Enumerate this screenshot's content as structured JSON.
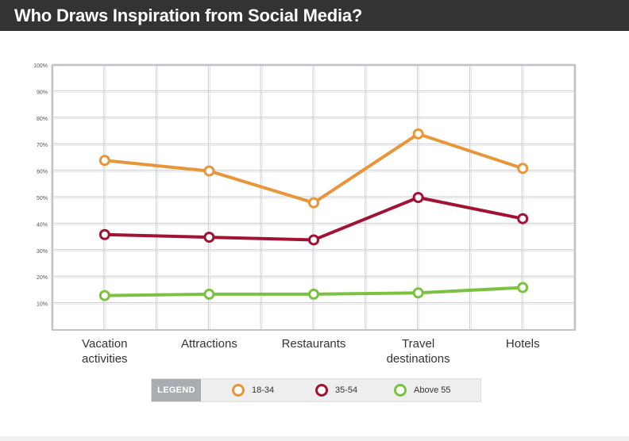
{
  "title": "Who Draws Inspiration from Social Media?",
  "legend": {
    "heading": "LEGEND",
    "items": [
      {
        "label": "18-34",
        "color": "#e8963a"
      },
      {
        "label": "35-54",
        "color": "#a21232"
      },
      {
        "label": "Above 55",
        "color": "#7cc242"
      }
    ]
  },
  "chart_data": {
    "type": "line",
    "title": "Who Draws Inspiration from Social Media?",
    "categories": [
      [
        "Vacation",
        "activities"
      ],
      [
        "Attractions"
      ],
      [
        "Restaurants"
      ],
      [
        "Travel",
        "destinations"
      ],
      [
        "Hotels"
      ]
    ],
    "y_ticks": [
      "10%",
      "20%",
      "30%",
      "40%",
      "50%",
      "60%",
      "70%",
      "80%",
      "90%",
      "100%"
    ],
    "ylim": [
      0,
      100
    ],
    "grid": true,
    "legend_position": "bottom",
    "series": [
      {
        "name": "18-34",
        "color": "#e8963a",
        "values": [
          64,
          60,
          48,
          74,
          61
        ]
      },
      {
        "name": "35-54",
        "color": "#a21232",
        "values": [
          36,
          35,
          34,
          50,
          42
        ]
      },
      {
        "name": "Above 55",
        "color": "#7cc242",
        "values": [
          13,
          13.5,
          13.5,
          14,
          16
        ]
      }
    ]
  }
}
